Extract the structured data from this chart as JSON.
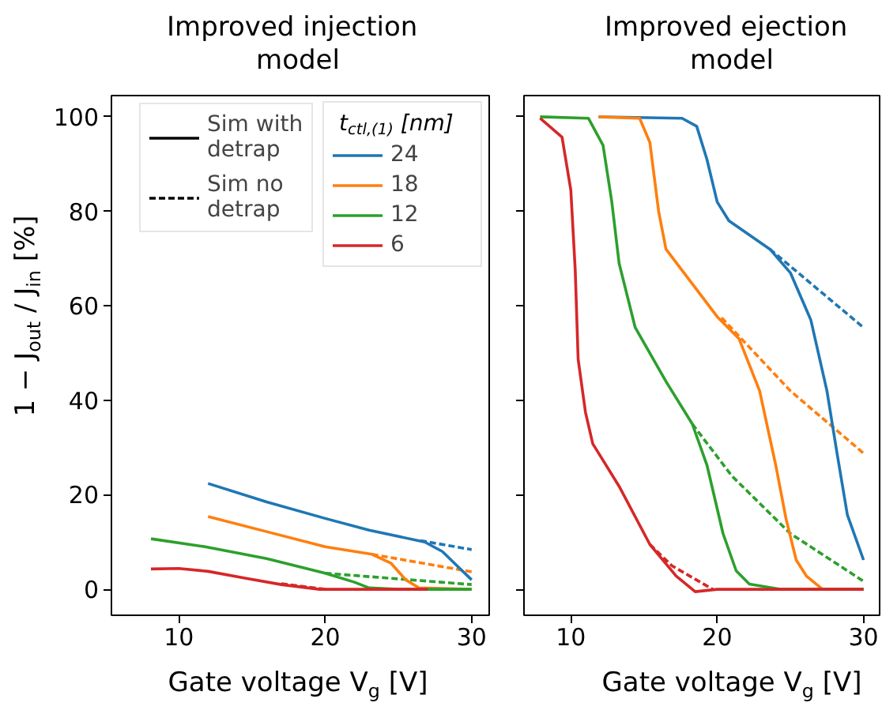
{
  "chart_data": [
    {
      "type": "line",
      "title": "Improved injection model",
      "xlabel": "Gate voltage V$_{g}$ [V]",
      "ylabel": "1 − J$_{out}$ / J$_{in}$ [%]",
      "legend_title": "t$_{ctl,(1)}$ [nm]",
      "legend": "top right",
      "annotations": [
        "Sim with detrap",
        "Sim no detrap"
      ],
      "xlim": [
        5.4,
        31.2
      ],
      "ylim": [
        -5.5,
        104.5
      ],
      "xticks": [
        10,
        20,
        30
      ],
      "yticks": [
        0,
        20,
        40,
        60,
        80,
        100
      ],
      "grid": false,
      "series": [
        {
          "name": "24",
          "color": "#1f77b4",
          "line_style": "solid",
          "x": [
            12,
            16,
            20,
            23,
            26.8,
            28,
            29,
            30
          ],
          "values": [
            22.4,
            18.5,
            15,
            12.5,
            10,
            8,
            5,
            2
          ]
        },
        {
          "name": "18",
          "color": "#ff7f0e",
          "line_style": "solid",
          "x": [
            12,
            16,
            20,
            23.2,
            24.5,
            25.5,
            26.4,
            30
          ],
          "values": [
            15.4,
            12.2,
            9,
            7.4,
            5.5,
            2,
            0.3,
            0
          ]
        },
        {
          "name": "12",
          "color": "#2ca02c",
          "line_style": "solid",
          "x": [
            8.1,
            11.8,
            16,
            20,
            22,
            23,
            25,
            30
          ],
          "values": [
            10.7,
            9,
            6.5,
            3.4,
            1.5,
            0.3,
            0,
            0
          ]
        },
        {
          "name": "6",
          "color": "#d62728",
          "line_style": "solid",
          "x": [
            8.1,
            10,
            12,
            14.6,
            17,
            19.6,
            22,
            27
          ],
          "values": [
            4.3,
            4.4,
            3.8,
            2.3,
            1,
            0,
            0,
            0
          ]
        },
        {
          "color": "#1f77b4",
          "line_style": "dashed",
          "x": [
            26.5,
            30
          ],
          "values": [
            10.3,
            8.4
          ]
        },
        {
          "color": "#ff7f0e",
          "line_style": "dashed",
          "x": [
            23.2,
            30
          ],
          "values": [
            7.4,
            3.7
          ]
        },
        {
          "color": "#2ca02c",
          "line_style": "dashed",
          "x": [
            20,
            30
          ],
          "values": [
            3.4,
            1
          ]
        },
        {
          "color": "#d62728",
          "line_style": "dashed",
          "x": [
            17,
            20
          ],
          "values": [
            1.2,
            0
          ]
        }
      ]
    },
    {
      "type": "line",
      "title": "Improved ejection model",
      "xlabel": "Gate voltage V$_{g}$ [V]",
      "xlim": [
        6.8,
        31.1
      ],
      "ylim": [
        -5.5,
        104.5
      ],
      "xticks": [
        10,
        20,
        30
      ],
      "yticks": [
        0,
        20,
        40,
        60,
        80,
        100
      ],
      "tick_labels": "x",
      "grid": false,
      "series": [
        {
          "color": "#1f77b4",
          "line_style": "solid",
          "x": [
            11.9,
            17.6,
            18.6,
            19.3,
            20,
            20.8,
            23.6,
            25,
            26.4,
            27.5,
            28.2,
            28.9,
            30
          ],
          "values": [
            100,
            99.7,
            98,
            91,
            82,
            78,
            72,
            67,
            57,
            42,
            28.6,
            15.7,
            6.2
          ]
        },
        {
          "color": "#ff7f0e",
          "line_style": "solid",
          "x": [
            11.9,
            14.7,
            15.4,
            16,
            16.5,
            20,
            21.5,
            22.9,
            24,
            24.7,
            25.4,
            26.1,
            27.2,
            30
          ],
          "values": [
            100,
            99.7,
            94.6,
            80,
            72,
            57.7,
            53,
            42,
            26.3,
            15,
            6.2,
            2.8,
            0,
            0
          ]
        },
        {
          "color": "#2ca02c",
          "line_style": "solid",
          "x": [
            7.9,
            11.2,
            12.2,
            12.8,
            13.3,
            14.4,
            16.5,
            18.3,
            19.3,
            20.4,
            21.3,
            22.2,
            24.3,
            30
          ],
          "values": [
            100,
            99.7,
            94,
            82,
            69,
            55.4,
            44,
            35,
            26.3,
            11.8,
            3.9,
            1.1,
            0,
            0
          ]
        },
        {
          "color": "#d62728",
          "line_style": "solid",
          "x": [
            7.9,
            9.4,
            10,
            10.3,
            10.5,
            11,
            11.5,
            13.3,
            15.4,
            17.2,
            18.5,
            20,
            30
          ],
          "values": [
            99.7,
            95.7,
            84.5,
            67.7,
            48.7,
            37.5,
            30.8,
            21.8,
            9.5,
            2.8,
            -0.5,
            0,
            0
          ]
        },
        {
          "color": "#1f77b4",
          "line_style": "dashed",
          "x": [
            23.6,
            30
          ],
          "values": [
            72,
            55.4
          ]
        },
        {
          "color": "#ff7f0e",
          "line_style": "dashed",
          "x": [
            20.3,
            25,
            30
          ],
          "values": [
            57.5,
            42,
            28.8
          ]
        },
        {
          "color": "#2ca02c",
          "line_style": "dashed",
          "x": [
            18.3,
            21,
            25,
            30
          ],
          "values": [
            35,
            24,
            11.8,
            1.7
          ]
        },
        {
          "color": "#d62728",
          "line_style": "dashed",
          "x": [
            15.4,
            16.9,
            19.7
          ],
          "values": [
            9.5,
            5,
            0
          ]
        }
      ]
    }
  ]
}
